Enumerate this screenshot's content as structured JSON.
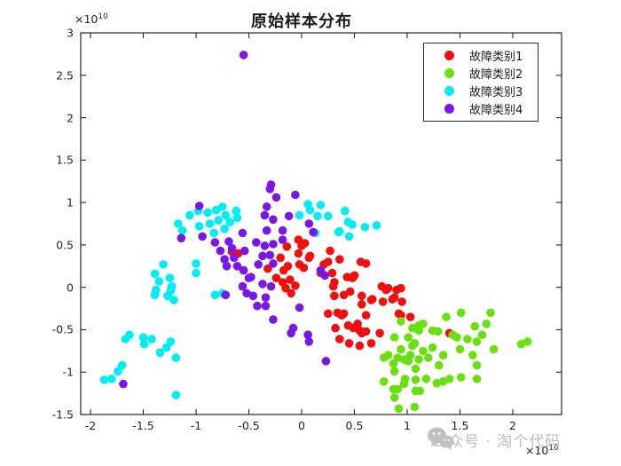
{
  "title": "原始样本分布",
  "axes": {
    "x_exponent": {
      "base": "×10",
      "sup": "10"
    },
    "y_exponent": {
      "base": "×10",
      "sup": "10"
    }
  },
  "watermark": {
    "icon": "wechat-icon",
    "text": "公众号 · 淘个代码",
    "color": "#b9b9b9"
  },
  "chart_data": {
    "type": "scatter",
    "title": "原始样本分布",
    "xlabel": "",
    "ylabel": "",
    "x_scale": "×10^10",
    "y_scale": "×10^10",
    "xlim": [
      -2.09,
      2.46
    ],
    "ylim": [
      -1.5,
      3
    ],
    "x_ticks": [
      -2,
      -1.5,
      -1,
      -0.5,
      0,
      0.5,
      1,
      1.5,
      2
    ],
    "y_ticks": [
      -1.5,
      -1,
      -0.5,
      0,
      0.5,
      1,
      1.5,
      2,
      2.5,
      3
    ],
    "grid": false,
    "legend_position": "top-right-inside",
    "marker": "filled-circle",
    "series": [
      {
        "name": "故障类别1",
        "color": "#f50d0d",
        "points": [
          [
            -0.66,
            0.42
          ],
          [
            -0.6,
            0.4
          ],
          [
            -0.32,
            0.22
          ],
          [
            -0.24,
            0.11
          ],
          [
            -0.2,
            0.35
          ],
          [
            -0.18,
            0.06
          ],
          [
            -0.17,
            0.2
          ],
          [
            -0.15,
            -0.01
          ],
          [
            -0.14,
            0.48
          ],
          [
            -0.13,
            0.25
          ],
          [
            -0.11,
            0.09
          ],
          [
            -0.1,
            -0.07
          ],
          [
            -0.06,
            0.02
          ],
          [
            -0.03,
            0.56
          ],
          [
            -0.03,
            0.4
          ],
          [
            -0.02,
            0.27
          ],
          [
            0.0,
            0.49
          ],
          [
            0.02,
            0.23
          ],
          [
            0.03,
            0.52
          ],
          [
            0.07,
            0.35
          ],
          [
            0.08,
            0.37
          ],
          [
            0.18,
            0.17
          ],
          [
            0.21,
            0.27
          ],
          [
            0.25,
            0.3
          ],
          [
            0.25,
            -0.31
          ],
          [
            0.27,
            0.43
          ],
          [
            0.29,
            0.17
          ],
          [
            0.3,
            0.01
          ],
          [
            0.31,
            0.06
          ],
          [
            0.31,
            -0.1
          ],
          [
            0.32,
            -0.48
          ],
          [
            0.34,
            -0.3
          ],
          [
            0.36,
            0.33
          ],
          [
            0.36,
            -0.61
          ],
          [
            0.38,
            -0.33
          ],
          [
            0.4,
            -0.09
          ],
          [
            0.4,
            -0.31
          ],
          [
            0.43,
            0.12
          ],
          [
            0.44,
            -0.45
          ],
          [
            0.45,
            -0.66
          ],
          [
            0.46,
            -0.05
          ],
          [
            0.48,
            0.11
          ],
          [
            0.49,
            0.12
          ],
          [
            0.49,
            -0.48
          ],
          [
            0.5,
            0.14
          ],
          [
            0.53,
            -0.43
          ],
          [
            0.55,
            -0.51
          ],
          [
            0.55,
            -0.69
          ],
          [
            0.56,
            0.3
          ],
          [
            0.57,
            -0.1
          ],
          [
            0.57,
            -0.2
          ],
          [
            0.57,
            -0.54
          ],
          [
            0.61,
            0.28
          ],
          [
            0.61,
            -0.33
          ],
          [
            0.61,
            -0.52
          ],
          [
            0.66,
            -0.15
          ],
          [
            0.66,
            -0.66
          ],
          [
            0.67,
            -0.14
          ],
          [
            0.74,
            -0.54
          ],
          [
            0.76,
            0.01
          ],
          [
            0.77,
            -0.17
          ],
          [
            0.8,
            -0.03
          ],
          [
            0.82,
            -0.01
          ],
          [
            0.86,
            -0.14
          ],
          [
            0.88,
            -0.12
          ],
          [
            0.9,
            -0.03
          ],
          [
            0.92,
            -0.31
          ],
          [
            0.94,
            -0.01
          ],
          [
            0.95,
            -0.17
          ],
          [
            0.94,
            -0.33
          ],
          [
            1.03,
            -0.35
          ],
          [
            1.4,
            -0.54
          ]
        ]
      },
      {
        "name": "故障类别2",
        "color": "#69e010",
        "points": [
          [
            0.78,
            -0.83
          ],
          [
            0.78,
            -1.11
          ],
          [
            0.82,
            -0.8
          ],
          [
            0.87,
            -0.9
          ],
          [
            0.87,
            -1.2
          ],
          [
            0.88,
            -0.59
          ],
          [
            0.88,
            -0.99
          ],
          [
            0.88,
            -1.3
          ],
          [
            0.91,
            -0.83
          ],
          [
            0.91,
            -1.2
          ],
          [
            0.92,
            -1.43
          ],
          [
            0.94,
            -0.4
          ],
          [
            0.94,
            -0.73
          ],
          [
            0.97,
            -0.85
          ],
          [
            0.97,
            -1.14
          ],
          [
            0.98,
            -1.08
          ],
          [
            1.01,
            -0.59
          ],
          [
            1.01,
            -0.87
          ],
          [
            1.03,
            -0.8
          ],
          [
            1.05,
            -0.48
          ],
          [
            1.05,
            -0.69
          ],
          [
            1.07,
            -0.66
          ],
          [
            1.07,
            -1.41
          ],
          [
            1.08,
            -0.96
          ],
          [
            1.08,
            -1.09
          ],
          [
            1.08,
            -1.22
          ],
          [
            1.11,
            -0.45
          ],
          [
            1.11,
            -0.51
          ],
          [
            1.11,
            -0.85
          ],
          [
            1.12,
            -1.22
          ],
          [
            1.15,
            -0.43
          ],
          [
            1.15,
            -0.75
          ],
          [
            1.18,
            -1.08
          ],
          [
            1.2,
            -0.83
          ],
          [
            1.24,
            -0.51
          ],
          [
            1.24,
            -0.71
          ],
          [
            1.28,
            -1.13
          ],
          [
            1.29,
            -0.52
          ],
          [
            1.3,
            -0.92
          ],
          [
            1.34,
            -0.8
          ],
          [
            1.34,
            -1.11
          ],
          [
            1.37,
            -0.35
          ],
          [
            1.4,
            -1.08
          ],
          [
            1.43,
            -0.56
          ],
          [
            1.47,
            -0.59
          ],
          [
            1.5,
            -0.73
          ],
          [
            1.51,
            -0.3
          ],
          [
            1.51,
            -1.06
          ],
          [
            1.57,
            -0.61
          ],
          [
            1.62,
            -0.8
          ],
          [
            1.64,
            -0.46
          ],
          [
            1.66,
            -0.92
          ],
          [
            1.66,
            -0.64
          ],
          [
            1.66,
            -1.08
          ],
          [
            1.71,
            -0.56
          ],
          [
            1.75,
            -0.43
          ],
          [
            1.79,
            -0.3
          ],
          [
            1.82,
            -0.73
          ],
          [
            2.08,
            -0.67
          ],
          [
            2.14,
            -0.64
          ]
        ]
      },
      {
        "name": "故障类别3",
        "color": "#00eef2",
        "points": [
          [
            -1.17,
            0.75
          ],
          [
            -1.13,
            0.67
          ],
          [
            -1.06,
            0.85
          ],
          [
            -0.98,
            0.9
          ],
          [
            -0.97,
            0.72
          ],
          [
            -0.89,
            0.88
          ],
          [
            -0.87,
            0.75
          ],
          [
            -0.81,
            0.91
          ],
          [
            -0.79,
            0.79
          ],
          [
            -0.75,
            0.95
          ],
          [
            -0.72,
            0.85
          ],
          [
            -0.68,
            0.77
          ],
          [
            -0.62,
            0.9
          ],
          [
            -0.61,
            0.82
          ],
          [
            -0.83,
            0.64
          ],
          [
            -0.73,
            0.69
          ],
          [
            -1.0,
            0.28
          ],
          [
            -1.0,
            0.17
          ],
          [
            -1.31,
            0.27
          ],
          [
            -1.39,
            0.16
          ],
          [
            -1.35,
            0.07
          ],
          [
            -1.25,
            0.11
          ],
          [
            -1.23,
            0.01
          ],
          [
            -1.38,
            -0.03
          ],
          [
            -1.24,
            -0.04
          ],
          [
            -1.39,
            -0.09
          ],
          [
            -1.27,
            -0.1
          ],
          [
            -1.21,
            -0.15
          ],
          [
            -0.82,
            -0.09
          ],
          [
            -0.75,
            -0.07
          ],
          [
            -1.67,
            -0.61
          ],
          [
            -1.63,
            -0.56
          ],
          [
            -1.5,
            -0.59
          ],
          [
            -1.49,
            -0.67
          ],
          [
            -1.42,
            -0.61
          ],
          [
            -1.34,
            -0.77
          ],
          [
            -1.28,
            -0.71
          ],
          [
            -1.24,
            -0.64
          ],
          [
            -1.19,
            -0.83
          ],
          [
            -1.87,
            -1.09
          ],
          [
            -1.8,
            -1.08
          ],
          [
            -1.74,
            -0.99
          ],
          [
            -1.7,
            -0.92
          ],
          [
            -1.19,
            -1.27
          ],
          [
            0.06,
            0.98
          ],
          [
            0.08,
            0.91
          ],
          [
            0.18,
            0.97
          ],
          [
            -0.02,
            0.85
          ],
          [
            0.15,
            0.84
          ],
          [
            0.25,
            0.84
          ],
          [
            0.41,
            0.9
          ],
          [
            0.44,
            0.77
          ],
          [
            0.48,
            0.74
          ],
          [
            0.36,
            0.66
          ],
          [
            0.45,
            0.6
          ],
          [
            0.6,
            0.71
          ],
          [
            0.71,
            0.73
          ],
          [
            0.13,
            0.64
          ],
          [
            0.35,
            0.65
          ]
        ]
      },
      {
        "name": "故障类别4",
        "color": "#7b16e8",
        "points": [
          [
            -0.55,
            2.74
          ],
          [
            -0.29,
            1.21
          ],
          [
            -0.97,
            0.96
          ],
          [
            -1.14,
            0.58
          ],
          [
            -0.94,
            0.6
          ],
          [
            -0.82,
            0.53
          ],
          [
            -0.77,
            0.43
          ],
          [
            -0.69,
            0.54
          ],
          [
            -0.66,
            0.46
          ],
          [
            -0.64,
            0.35
          ],
          [
            -0.73,
            0.33
          ],
          [
            -0.71,
            0.25
          ],
          [
            -0.61,
            0.25
          ],
          [
            -0.56,
            0.64
          ],
          [
            -0.55,
            0.2
          ],
          [
            -0.3,
            1.16
          ],
          [
            -0.24,
            1.06
          ],
          [
            -0.06,
            1.09
          ],
          [
            -0.33,
            0.95
          ],
          [
            -0.35,
            0.85
          ],
          [
            -0.27,
            0.8
          ],
          [
            -0.12,
            0.84
          ],
          [
            0.07,
            0.75
          ],
          [
            0.11,
            0.65
          ],
          [
            -0.18,
            0.67
          ],
          [
            -0.33,
            0.67
          ],
          [
            -0.18,
            0.56
          ],
          [
            -0.43,
            0.53
          ],
          [
            -0.35,
            0.49
          ],
          [
            -0.27,
            0.51
          ],
          [
            -0.54,
            0.43
          ],
          [
            -0.37,
            0.37
          ],
          [
            -0.3,
            0.38
          ],
          [
            -0.41,
            0.27
          ],
          [
            -0.27,
            0.28
          ],
          [
            -0.48,
            0.12
          ],
          [
            -0.37,
            0.04
          ],
          [
            -0.5,
            0.11
          ],
          [
            -0.56,
            0.01
          ],
          [
            -0.46,
            -0.1
          ],
          [
            -0.34,
            -0.12
          ],
          [
            -0.42,
            -0.22
          ],
          [
            -0.34,
            -0.22
          ],
          [
            -0.29,
            0.01
          ],
          [
            -0.27,
            -0.38
          ],
          [
            -0.08,
            -0.48
          ],
          [
            -0.1,
            -0.54
          ],
          [
            0.06,
            -0.56
          ],
          [
            0.07,
            -0.64
          ],
          [
            -0.02,
            -0.24
          ],
          [
            0.23,
            -0.87
          ],
          [
            0.18,
            0.2
          ],
          [
            0.22,
            0.14
          ],
          [
            -1.69,
            -1.14
          ],
          [
            -0.72,
            -0.09
          ],
          [
            -0.52,
            -0.07
          ]
        ]
      }
    ]
  }
}
